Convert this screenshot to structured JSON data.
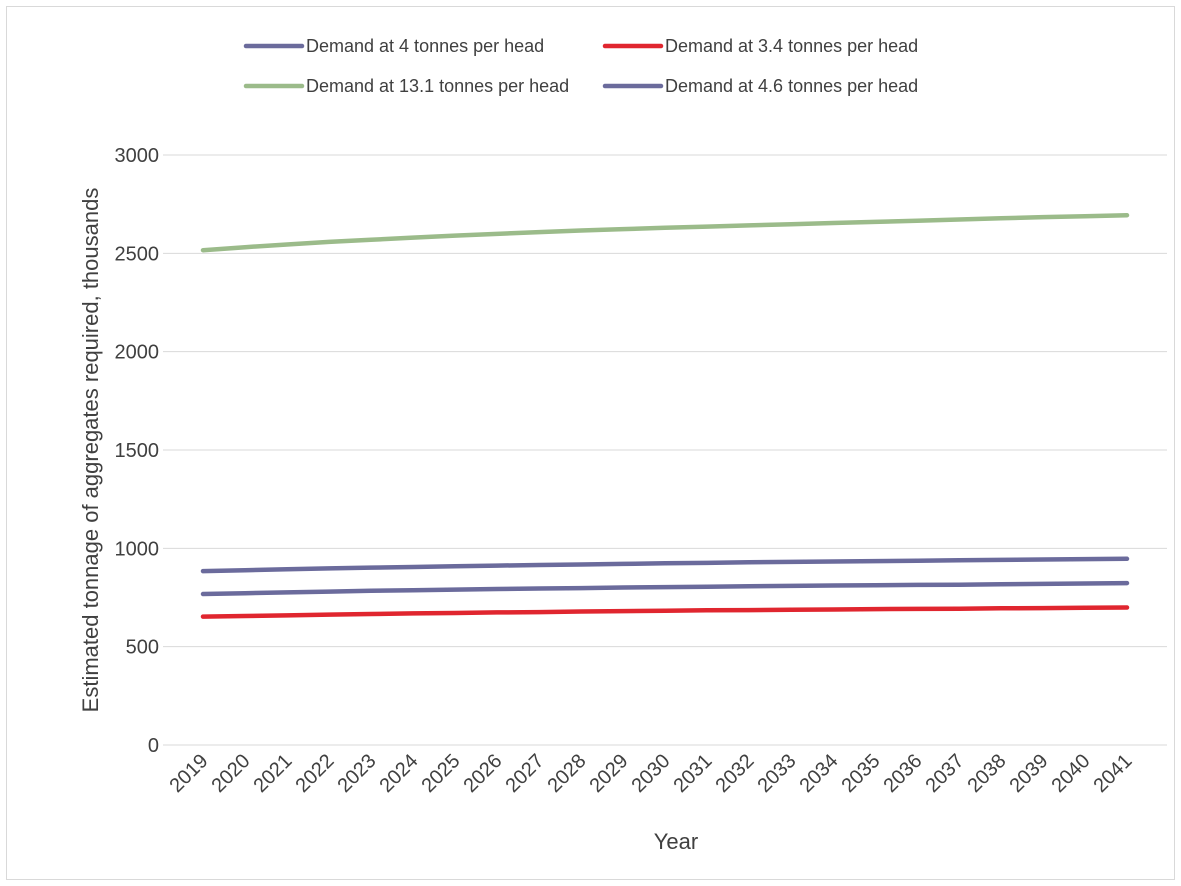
{
  "chart_data": {
    "type": "line",
    "title": "",
    "xlabel": "Year",
    "ylabel": "Estimated tonnage of aggregates required, thousands",
    "ylim": [
      0,
      3000
    ],
    "yticks": [
      0,
      500,
      1000,
      1500,
      2000,
      2500,
      3000
    ],
    "grid": "horizontal",
    "legend_position": "top",
    "categories": [
      "2019",
      "2020",
      "2021",
      "2022",
      "2023",
      "2024",
      "2025",
      "2026",
      "2027",
      "2028",
      "2029",
      "2030",
      "2031",
      "2032",
      "2033",
      "2034",
      "2035",
      "2036",
      "2037",
      "2038",
      "2039",
      "2040",
      "2041"
    ],
    "series": [
      {
        "name": "Demand at 4 tonnes per head",
        "color": "#6b6b9c",
        "values": [
          768,
          772,
          776,
          780,
          784,
          787,
          790,
          793,
          796,
          798,
          801,
          803,
          805,
          807,
          809,
          811,
          812,
          814,
          815,
          817,
          819,
          821,
          823
        ]
      },
      {
        "name": "Demand at 3.4 tonnes per head",
        "color": "#e0262f",
        "values": [
          653,
          656,
          659,
          663,
          666,
          669,
          671,
          674,
          676,
          679,
          681,
          683,
          685,
          686,
          688,
          689,
          691,
          692,
          693,
          695,
          696,
          698,
          699
        ]
      },
      {
        "name": "Demand at 13.1 tonnes per head",
        "color": "#9bbb8a",
        "values": [
          2516,
          2531,
          2545,
          2558,
          2569,
          2580,
          2590,
          2599,
          2608,
          2616,
          2623,
          2630,
          2636,
          2642,
          2648,
          2654,
          2660,
          2666,
          2672,
          2678,
          2684,
          2689,
          2694
        ]
      },
      {
        "name": "Demand at 4.6 tonnes per head",
        "color": "#6b6b9c",
        "values": [
          884,
          889,
          894,
          898,
          902,
          905,
          909,
          912,
          915,
          918,
          921,
          924,
          926,
          929,
          931,
          933,
          935,
          937,
          939,
          941,
          943,
          945,
          947
        ]
      }
    ]
  }
}
